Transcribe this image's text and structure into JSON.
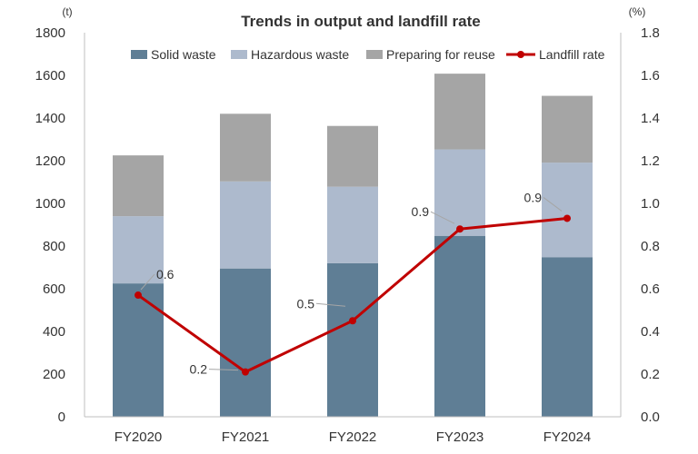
{
  "chart_data": {
    "type": "bar",
    "title": "Trends in output and landfill rate",
    "categories": [
      "FY2020",
      "FY2021",
      "FY2022",
      "FY2023",
      "FY2024"
    ],
    "y_left": {
      "unit": "(t)",
      "min": 0,
      "max": 1800,
      "step": 200,
      "tick_labels": [
        "0",
        "200",
        "400",
        "600",
        "800",
        "1000",
        "1200",
        "1400",
        "1600",
        "1800"
      ]
    },
    "y_right": {
      "unit": "(%)",
      "min": 0,
      "max": 1.8,
      "step": 0.2,
      "tick_labels": [
        "0.0",
        "0.2",
        "0.4",
        "0.6",
        "0.8",
        "1.0",
        "1.2",
        "1.4",
        "1.6",
        "1.8"
      ]
    },
    "stacked_series": [
      {
        "name": "Solid waste",
        "color": "#5f7e95",
        "values": [
          625,
          695,
          720,
          848,
          748
        ]
      },
      {
        "name": "Hazardous waste",
        "color": "#adbacd",
        "values": [
          315,
          408,
          358,
          405,
          443
        ]
      },
      {
        "name": "Preparing for reuse",
        "color": "#a5a5a5",
        "values": [
          285,
          317,
          285,
          355,
          313
        ]
      }
    ],
    "line_series": {
      "name": "Landfill rate",
      "color": "#c00000",
      "values": [
        0.57,
        0.21,
        0.45,
        0.88,
        0.93
      ],
      "data_labels": [
        "0.6",
        "0.2",
        "0.5",
        "0.9",
        "0.9"
      ]
    },
    "legend_position": "top",
    "grid": false
  }
}
